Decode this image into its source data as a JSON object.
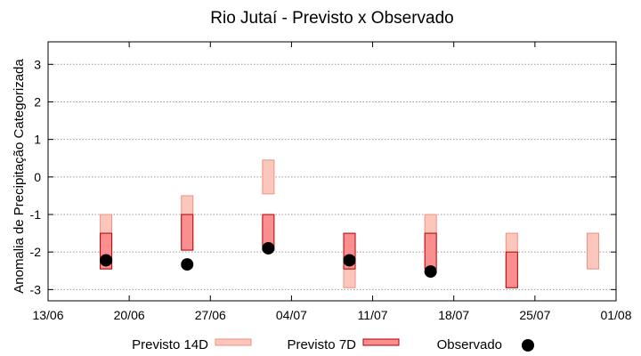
{
  "chart_data": {
    "type": "bar",
    "title": "Rio Jutaí - Previsto x Observado",
    "xlabel": "",
    "ylabel": "Anomalia de Precipitação Categorizada",
    "ylim": [
      -3.3,
      3.6
    ],
    "xlim": [
      "2025-06-13",
      "2025-08-01"
    ],
    "yticks": [
      3,
      2,
      1,
      0,
      -1,
      -2,
      -3
    ],
    "ytick_labels": [
      "3",
      "2",
      "1",
      "0",
      "-1",
      "-2",
      "-3"
    ],
    "xticks": [
      "2025-06-13",
      "2025-06-20",
      "2025-06-27",
      "2025-07-04",
      "2025-07-11",
      "2025-07-18",
      "2025-07-25",
      "2025-08-01"
    ],
    "xtick_labels": [
      "13/06",
      "20/06",
      "27/06",
      "04/07",
      "11/07",
      "18/07",
      "25/07",
      "01/08"
    ],
    "grid": true,
    "legend_position": "bottom",
    "colors": {
      "previsto_14d_fill": "#fbc7bd",
      "previsto_14d_stroke": "#f08f82",
      "previsto_7d_fill": "#fb8f8f",
      "previsto_7d_stroke": "#b00000",
      "observado": "#000000",
      "grid": "#999999"
    },
    "series": [
      {
        "name": "Previsto 14D",
        "kind": "range",
        "points": [
          {
            "date": "2025-06-18",
            "low": -2.45,
            "high": -1.0
          },
          {
            "date": "2025-06-25",
            "low": -1.95,
            "high": -0.5
          },
          {
            "date": "2025-07-02",
            "low": -0.45,
            "high": 0.45
          },
          {
            "date": "2025-07-09",
            "low": -2.95,
            "high": -2.45
          },
          {
            "date": "2025-07-16",
            "low": -2.0,
            "high": -1.0
          },
          {
            "date": "2025-07-23",
            "low": -2.95,
            "high": -1.5
          },
          {
            "date": "2025-07-30",
            "low": -2.45,
            "high": -1.5
          }
        ]
      },
      {
        "name": "Previsto 7D",
        "kind": "range",
        "points": [
          {
            "date": "2025-06-18",
            "low": -2.45,
            "high": -1.5
          },
          {
            "date": "2025-06-25",
            "low": -1.95,
            "high": -1.0
          },
          {
            "date": "2025-07-02",
            "low": -1.95,
            "high": -1.0
          },
          {
            "date": "2025-07-09",
            "low": -2.45,
            "high": -1.5
          },
          {
            "date": "2025-07-16",
            "low": -2.45,
            "high": -1.5
          },
          {
            "date": "2025-07-23",
            "low": -2.95,
            "high": -2.0
          }
        ]
      },
      {
        "name": "Observado",
        "kind": "point",
        "points": [
          {
            "date": "2025-06-18",
            "value": -2.22
          },
          {
            "date": "2025-06-25",
            "value": -2.33
          },
          {
            "date": "2025-07-02",
            "value": -1.9
          },
          {
            "date": "2025-07-09",
            "value": -2.22
          },
          {
            "date": "2025-07-16",
            "value": -2.52
          }
        ]
      }
    ]
  }
}
